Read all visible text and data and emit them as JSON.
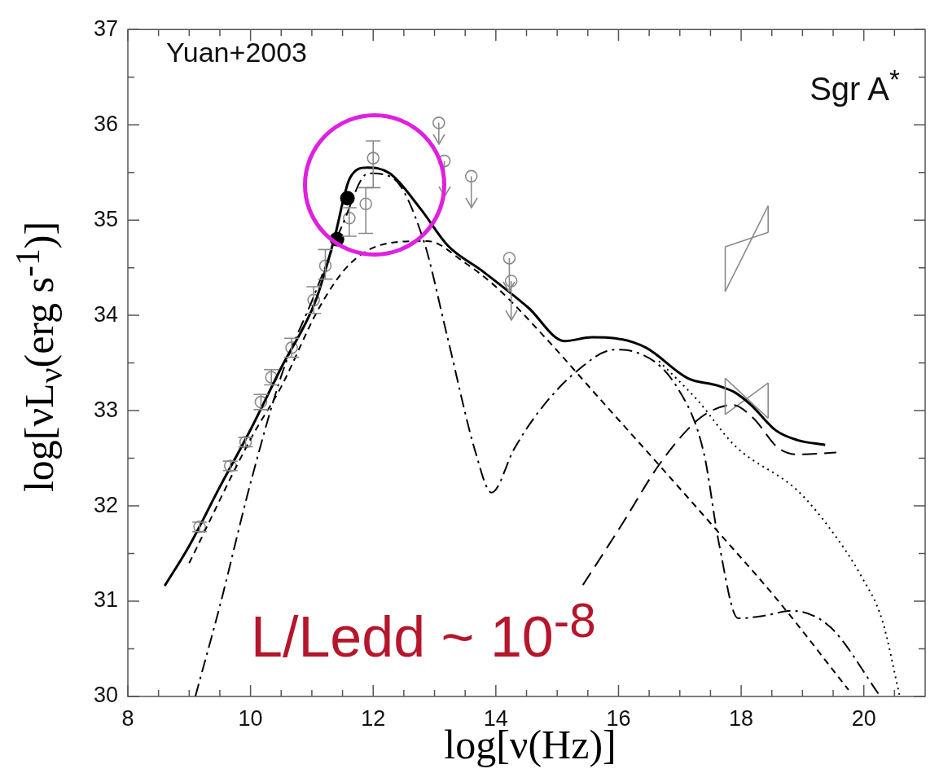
{
  "chart_data": {
    "type": "line",
    "xlabel": "log[ν(Hz)]",
    "ylabel": "log[νL$_{ν}$(erg s$^{-1}$)]",
    "annotations": [
      "Yuan+2003",
      "Sgr A$^{*}$",
      "L/Ledd ~ 10$^{-8}$"
    ],
    "xlim": [
      8,
      21
    ],
    "ylim": [
      30,
      37
    ],
    "xticks": [
      8,
      {
        "value": 8.5,
        "label": null
      },
      {
        "value": 9,
        "label": null
      },
      {
        "value": 9.5,
        "label": null
      },
      10,
      {
        "value": 10.5,
        "label": null
      },
      {
        "value": 11,
        "label": null
      },
      {
        "value": 11.5,
        "label": null
      },
      12,
      {
        "value": 12.5,
        "label": null
      },
      {
        "value": 13,
        "label": null
      },
      {
        "value": 13.5,
        "label": null
      },
      14,
      {
        "value": 14.5,
        "label": null
      },
      {
        "value": 15,
        "label": null
      },
      {
        "value": 15.5,
        "label": null
      },
      16,
      {
        "value": 16.5,
        "label": null
      },
      {
        "value": 17,
        "label": null
      },
      {
        "value": 17.5,
        "label": null
      },
      18,
      {
        "value": 18.5,
        "label": null
      },
      {
        "value": 19,
        "label": null
      },
      {
        "value": 19.5,
        "label": null
      },
      20,
      {
        "value": 20.5,
        "label": null
      }
    ],
    "yticks": [
      30,
      {
        "value": 30.5,
        "label": null
      },
      31,
      {
        "value": 31.5,
        "label": null
      },
      32,
      {
        "value": 32.5,
        "label": null
      },
      33,
      {
        "value": 33.5,
        "label": null
      },
      34,
      {
        "value": 34.5,
        "label": null
      },
      35,
      {
        "value": 35.5,
        "label": null
      },
      36,
      {
        "value": 36.5,
        "label": null
      },
      37
    ],
    "grid": false,
    "legend": false,
    "marker": "none",
    "series": [
      {
        "color": "#000000",
        "line_style": "solid",
        "x": [
          8.6,
          9,
          9.5,
          10,
          10.5,
          11.06,
          11.36,
          11.62,
          11.9,
          12.27,
          12.77,
          13.22,
          13.77,
          14.53,
          15.12,
          15.57,
          15.94,
          16.45,
          17.13,
          17.63,
          17.9,
          18.16,
          18.57,
          18.92,
          19.37
        ],
        "values": [
          31.16,
          31.58,
          32.2,
          32.8,
          33.45,
          34.15,
          34.79,
          35.44,
          35.55,
          35.49,
          35.12,
          34.73,
          34.47,
          34.08,
          33.73,
          33.77,
          33.76,
          33.66,
          33.34,
          33.26,
          33.19,
          33.06,
          32.79,
          32.69,
          32.64
        ]
      },
      {
        "color": "#000000",
        "line_style": "dashed",
        "x": [
          9.1,
          9.5,
          10,
          10.52,
          11,
          11.5,
          11.92,
          12.3,
          12.82,
          13.2,
          13.67,
          13.93,
          14.3,
          14.7,
          15.33,
          15.94,
          16.25,
          16.97,
          17.39,
          17.64,
          17.95,
          18.4,
          18.82,
          19.45,
          20.27
        ],
        "values": [
          30,
          30.95,
          32.24,
          33.4,
          34.15,
          34.95,
          35.49,
          35.45,
          34.79,
          33.8,
          32.56,
          32.14,
          32.6,
          32.99,
          33.42,
          33.64,
          33.62,
          33.23,
          32.56,
          31.6,
          30.82,
          30.85,
          30.9,
          30.73,
          30
        ]
      },
      {
        "color": "#000000",
        "line_style": "dashed",
        "x": [
          9,
          10,
          10.5,
          11.12,
          11.62,
          12.27,
          12.88,
          13.5,
          14,
          14.8,
          15.7,
          16.66,
          17.58,
          18.57,
          19.75
        ],
        "values": [
          31.4,
          32.7,
          33.25,
          34.08,
          34.54,
          34.76,
          34.78,
          34.55,
          34.3,
          33.77,
          33.12,
          32.43,
          31.76,
          31.03,
          30.07
        ]
      },
      {
        "color": "#000000",
        "line_style": "dashed",
        "x": [
          15.42,
          16.05,
          16.66,
          17.2,
          17.49,
          17.86,
          18.2,
          18.6,
          18.92,
          19.55
        ],
        "values": [
          31.17,
          31.8,
          32.43,
          32.85,
          32.99,
          33.06,
          32.92,
          32.61,
          32.54,
          32.56
        ]
      },
      {
        "color": "#000000",
        "line_style": "dotted",
        "x": [
          16.66,
          17.3,
          17.9,
          18.92,
          19.45,
          19.96,
          20.3,
          20.58
        ],
        "values": [
          33.52,
          33.1,
          32.63,
          32.16,
          31.76,
          31.26,
          30.8,
          30.02
        ]
      },
      {
        "color": "#8a8a8a",
        "line_style": "solid",
        "x": [
          17.74,
          18.44
        ],
        "values": [
          34.72,
          34.87
        ]
      },
      {
        "color": "#8a8a8a",
        "line_style": "solid",
        "x": [
          17.74,
          18.44
        ],
        "values": [
          34.25,
          35.15
        ],
        "errors": [
          [
            34.25,
            34.72
          ],
          [
            34.87,
            35.15
          ]
        ]
      },
      {
        "color": "#8a8a8a",
        "line_style": "solid",
        "x": [
          17.74,
          18.44
        ],
        "values": [
          33.34,
          32.92
        ]
      },
      {
        "color": "#8a8a8a",
        "line_style": "solid",
        "x": [
          17.74,
          18.44
        ],
        "values": [
          32.96,
          33.29
        ],
        "errors": [
          [
            32.96,
            33.34
          ],
          [
            32.92,
            33.29
          ]
        ]
      },
      {
        "type": "scatter",
        "marker": "circle",
        "color": "#8a8a8a",
        "x": [
          9.17,
          9.67,
          9.92,
          10.17,
          10.34,
          10.67,
          11.03,
          11.22,
          11.61,
          11.88,
          12.0
        ],
        "values": [
          31.78,
          32.42,
          32.67,
          33.09,
          33.35,
          33.66,
          34.16,
          34.52,
          35.02,
          35.17,
          35.65
        ],
        "errors": [
          0.05,
          0.05,
          0.05,
          0.08,
          0.08,
          0.1,
          0.14,
          [
            34.38,
            34.69
          ],
          [
            34.83,
            35.13
          ],
          [
            34.86,
            35.34
          ],
          [
            35.34,
            35.83
          ]
        ]
      },
      {
        "type": "scatter",
        "marker": "circle",
        "color": "#8a8a8a",
        "x": [
          13.07,
          13.16,
          13.6,
          14.22,
          14.25
        ],
        "values": [
          36.02,
          35.62,
          35.46,
          34.6,
          34.36
        ],
        "errors": [
          [
            35.8,
            36.02
          ],
          [
            35.25,
            35.62
          ],
          [
            35.13,
            35.46
          ],
          [
            34.25,
            34.6
          ],
          [
            33.95,
            34.36
          ]
        ]
      },
      {
        "type": "scatter",
        "marker": "circle",
        "color": "#000000",
        "x": [
          11.41,
          11.58
        ],
        "values": [
          34.8,
          35.23
        ]
      }
    ]
  }
}
